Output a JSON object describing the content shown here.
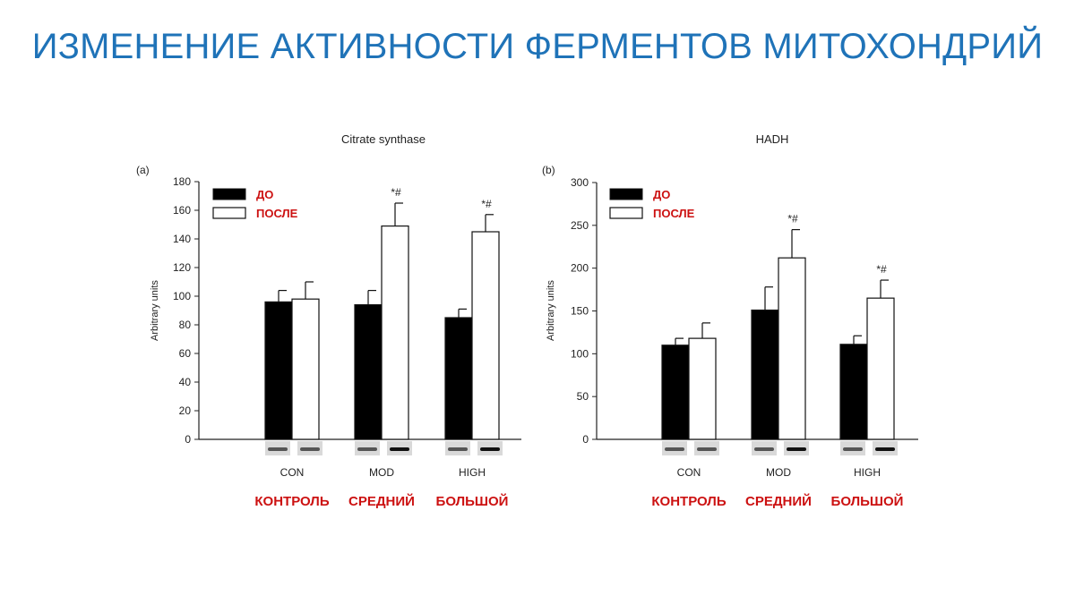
{
  "slide_title": "ИЗМЕНЕНИЕ АКТИВНОСТИ ФЕРМЕНТОВ МИТОХОНДРИЙ",
  "colors": {
    "title": "#1f73b8",
    "russian_labels": "#cc1111",
    "before_bar": "#000000",
    "after_bar": "#ffffff"
  },
  "chart_data": [
    {
      "type": "bar",
      "panel": "(a)",
      "title": "Citrate synthase",
      "ylabel": "Arbitrary units",
      "ylim": [
        0,
        180
      ],
      "yticks": [
        0,
        20,
        40,
        60,
        80,
        100,
        120,
        140,
        160,
        180
      ],
      "categories": [
        "CON",
        "MOD",
        "HIGH"
      ],
      "category_labels_ru": [
        "КОНТРОЛЬ",
        "СРЕДНИЙ",
        "БОЛЬШОЙ"
      ],
      "series": [
        {
          "name": "ДО",
          "values": [
            96,
            94,
            85
          ],
          "errors": [
            8,
            10,
            6
          ]
        },
        {
          "name": "ПОСЛЕ",
          "values": [
            98,
            149,
            145
          ],
          "errors": [
            12,
            16,
            12
          ]
        }
      ],
      "annotations": [
        "",
        "*#",
        "*#"
      ],
      "legend": "top-left"
    },
    {
      "type": "bar",
      "panel": "(b)",
      "title": "HADH",
      "ylabel": "Arbitrary units",
      "ylim": [
        0,
        300
      ],
      "yticks": [
        0,
        50,
        100,
        150,
        200,
        250,
        300
      ],
      "categories": [
        "CON",
        "MOD",
        "HIGH"
      ],
      "category_labels_ru": [
        "КОНТРОЛЬ",
        "СРЕДНИЙ",
        "БОЛЬШОЙ"
      ],
      "series": [
        {
          "name": "ДО",
          "values": [
            110,
            151,
            111
          ],
          "errors": [
            8,
            27,
            10
          ]
        },
        {
          "name": "ПОСЛЕ",
          "values": [
            118,
            212,
            165
          ],
          "errors": [
            18,
            33,
            21
          ]
        }
      ],
      "annotations": [
        "",
        "*#",
        "*#"
      ],
      "legend": "top-left"
    }
  ]
}
